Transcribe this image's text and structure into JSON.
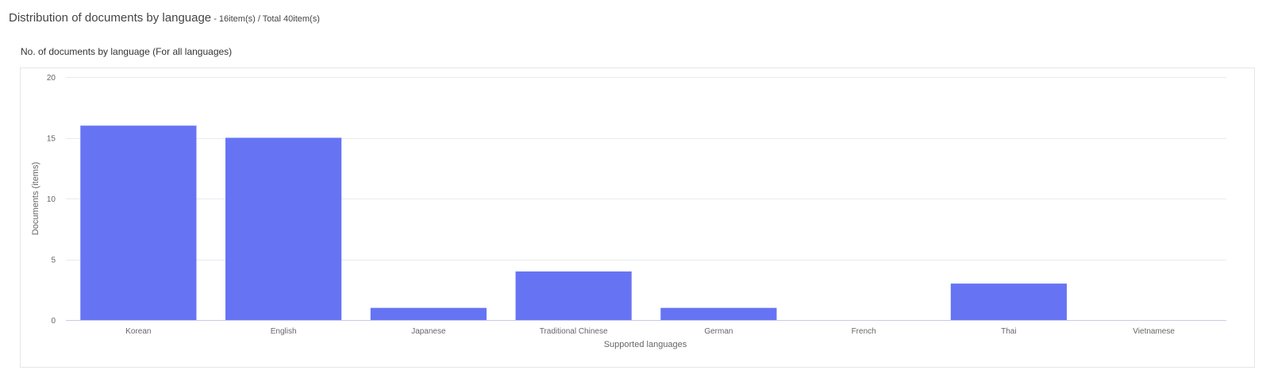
{
  "header": {
    "title": "Distribution of documents by language",
    "count_text": " - 16item(s) / Total 40item(s)"
  },
  "chart_data": {
    "type": "bar",
    "title": "No. of documents by language (For all languages)",
    "xlabel": "Supported languages",
    "ylabel": "Documents (items)",
    "categories": [
      "Korean",
      "English",
      "Japanese",
      "Traditional Chinese",
      "German",
      "French",
      "Thai",
      "Vietnamese"
    ],
    "values": [
      16,
      15,
      1,
      4,
      1,
      0,
      3,
      0
    ],
    "ylim": [
      0,
      20
    ],
    "yticks": [
      0,
      5,
      10,
      15,
      20
    ],
    "grid": true,
    "colors": {
      "bar": "#6674f4",
      "grid": "#e8eaf0",
      "axis": "#c8cbe6"
    }
  }
}
